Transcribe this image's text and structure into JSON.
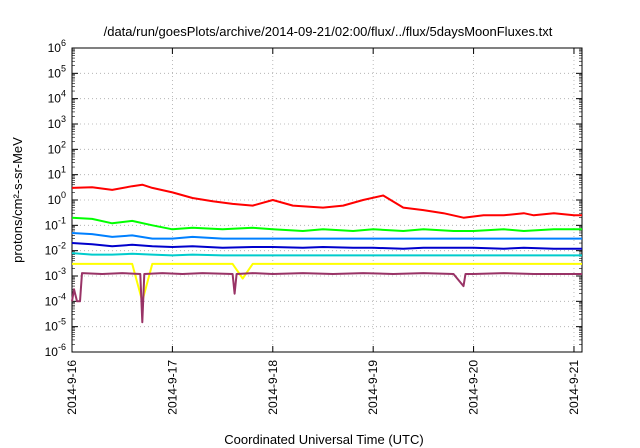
{
  "chart_data": {
    "type": "line",
    "title": "/data/run/goesPlots/archive/2014-09-21/02:00/flux/../flux/5daysMoonFluxes.txt",
    "xlabel": "Coordinated Universal Time (UTC)",
    "ylabel": "protons/cm²-s-sr-MeV",
    "y_scale": "log",
    "grid": true,
    "x_ticks": [
      "2014-9-16",
      "2014-9-17",
      "2014-9-18",
      "2014-9-19",
      "2014-9-20",
      "2014-9-21"
    ],
    "y_tick_exponents": [
      -6,
      -5,
      -4,
      -3,
      -2,
      -1,
      0,
      1,
      2,
      3,
      4,
      5,
      6
    ],
    "xlim_days_from_2014-9-16": [
      0,
      5.08
    ],
    "ylim": [
      1e-06,
      1000000.0
    ],
    "series": [
      {
        "color": "#ff0000",
        "x_days": [
          0.0,
          0.2,
          0.4,
          0.6,
          0.7,
          0.8,
          1.0,
          1.2,
          1.4,
          1.6,
          1.8,
          2.0,
          2.2,
          2.5,
          2.7,
          2.9,
          3.1,
          3.3,
          3.5,
          3.7,
          3.9,
          4.1,
          4.3,
          4.5,
          4.6,
          4.8,
          5.0,
          5.08
        ],
        "values": [
          3.0,
          3.2,
          2.5,
          3.5,
          4.0,
          3.0,
          2.0,
          1.2,
          0.9,
          0.7,
          0.6,
          1.0,
          0.6,
          0.5,
          0.6,
          1.0,
          1.5,
          0.5,
          0.4,
          0.3,
          0.2,
          0.25,
          0.25,
          0.3,
          0.25,
          0.3,
          0.25,
          0.25
        ]
      },
      {
        "color": "#00ff00",
        "x_days": [
          0.0,
          0.2,
          0.4,
          0.6,
          0.8,
          1.0,
          1.2,
          1.5,
          1.8,
          2.0,
          2.3,
          2.5,
          2.8,
          3.0,
          3.3,
          3.5,
          3.8,
          4.0,
          4.3,
          4.5,
          4.8,
          5.08
        ],
        "values": [
          0.2,
          0.18,
          0.12,
          0.15,
          0.1,
          0.07,
          0.08,
          0.07,
          0.08,
          0.07,
          0.06,
          0.07,
          0.06,
          0.07,
          0.06,
          0.07,
          0.06,
          0.06,
          0.07,
          0.06,
          0.07,
          0.07
        ]
      },
      {
        "color": "#0080ff",
        "x_days": [
          0.0,
          0.2,
          0.4,
          0.6,
          0.8,
          1.0,
          1.2,
          1.5,
          1.8,
          2.0,
          2.3,
          2.5,
          2.8,
          3.0,
          3.3,
          3.5,
          3.8,
          4.0,
          4.3,
          4.5,
          4.8,
          5.08
        ],
        "values": [
          0.05,
          0.045,
          0.035,
          0.04,
          0.03,
          0.03,
          0.035,
          0.03,
          0.03,
          0.03,
          0.03,
          0.03,
          0.03,
          0.03,
          0.03,
          0.03,
          0.03,
          0.03,
          0.03,
          0.03,
          0.03,
          0.03
        ]
      },
      {
        "color": "#0000cc",
        "x_days": [
          0.0,
          0.2,
          0.4,
          0.6,
          0.8,
          1.0,
          1.2,
          1.5,
          1.8,
          2.0,
          2.3,
          2.5,
          2.8,
          3.0,
          3.3,
          3.5,
          3.8,
          4.0,
          4.3,
          4.5,
          4.8,
          5.08
        ],
        "values": [
          0.02,
          0.018,
          0.015,
          0.017,
          0.015,
          0.014,
          0.015,
          0.013,
          0.014,
          0.014,
          0.013,
          0.014,
          0.013,
          0.013,
          0.012,
          0.013,
          0.013,
          0.013,
          0.012,
          0.013,
          0.012,
          0.012
        ]
      },
      {
        "color": "#00cccc",
        "x_days": [
          0.0,
          0.2,
          0.4,
          0.6,
          0.8,
          1.0,
          1.2,
          1.5,
          1.8,
          2.0,
          2.3,
          2.5,
          2.8,
          3.0,
          3.3,
          3.5,
          3.8,
          4.0,
          4.3,
          4.5,
          4.8,
          5.08
        ],
        "values": [
          0.008,
          0.007,
          0.007,
          0.0075,
          0.007,
          0.0065,
          0.007,
          0.0065,
          0.0065,
          0.0065,
          0.0065,
          0.0065,
          0.0065,
          0.0065,
          0.0065,
          0.0065,
          0.0065,
          0.0065,
          0.0065,
          0.0065,
          0.0065,
          0.0065
        ]
      },
      {
        "color": "#ffff00",
        "x_days": [
          0.0,
          0.3,
          0.6,
          0.7,
          0.8,
          1.0,
          1.3,
          1.6,
          1.7,
          1.8,
          2.0,
          2.3,
          2.6,
          3.0,
          3.3,
          3.6,
          4.0,
          4.3,
          4.6,
          5.08
        ],
        "values": [
          0.003,
          0.003,
          0.003,
          0.0001,
          0.003,
          0.003,
          0.003,
          0.003,
          0.0008,
          0.003,
          0.003,
          0.003,
          0.003,
          0.003,
          0.003,
          0.003,
          0.003,
          0.003,
          0.003,
          0.003
        ]
      },
      {
        "color": "#993366",
        "x_days": [
          0.0,
          0.02,
          0.05,
          0.08,
          0.1,
          0.3,
          0.5,
          0.68,
          0.7,
          0.72,
          0.9,
          1.1,
          1.3,
          1.6,
          1.62,
          1.64,
          1.8,
          2.0,
          2.3,
          2.6,
          2.9,
          3.2,
          3.5,
          3.8,
          3.9,
          3.92,
          4.0,
          4.3,
          4.6,
          5.08
        ],
        "values": [
          0.0001,
          0.0003,
          0.0001,
          0.0001,
          0.0013,
          0.0012,
          0.0013,
          0.0012,
          1.5e-05,
          0.0012,
          0.0013,
          0.0012,
          0.0013,
          0.0012,
          0.0002,
          0.0012,
          0.0013,
          0.0012,
          0.0013,
          0.0012,
          0.0013,
          0.0012,
          0.0013,
          0.0012,
          0.0004,
          0.0012,
          0.0012,
          0.0013,
          0.0012,
          0.0012
        ]
      }
    ]
  }
}
